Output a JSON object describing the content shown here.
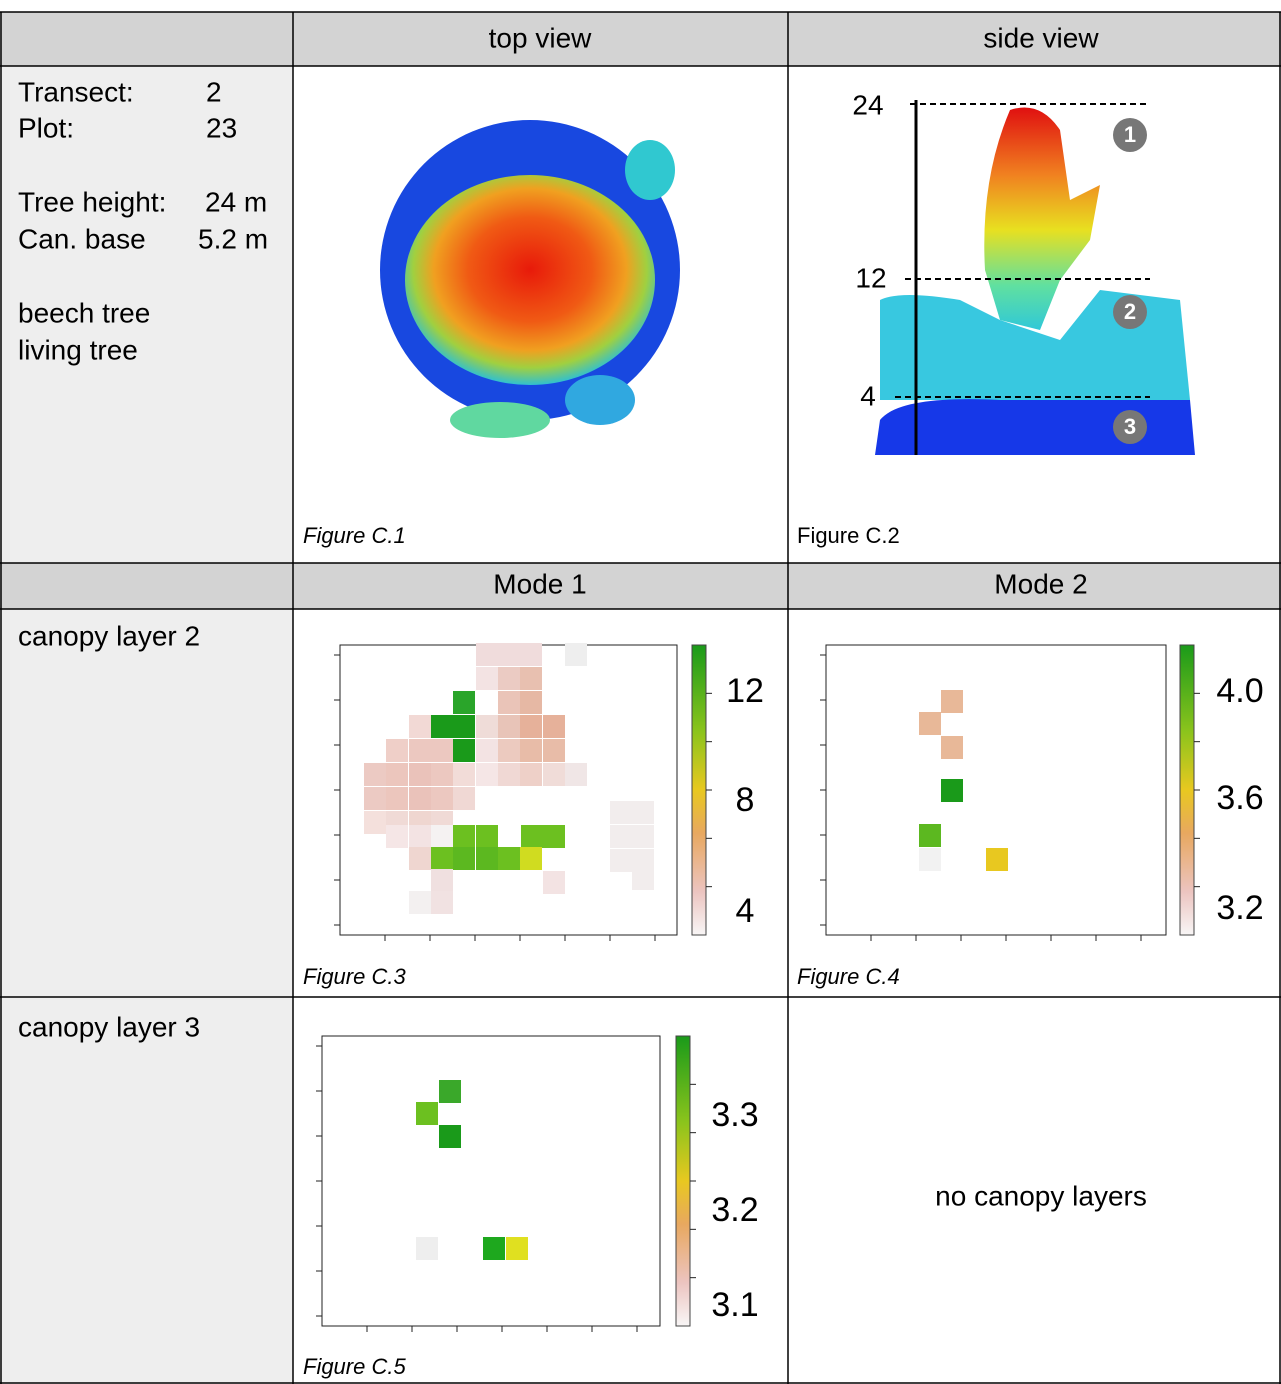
{
  "table": {
    "header_row_1": [
      "top view",
      "side view"
    ],
    "header_row_2": [
      "Mode 1",
      "Mode 2"
    ],
    "row_labels": [
      "canopy layer 2",
      "canopy layer 3"
    ],
    "empty_note": "no canopy layers"
  },
  "plot_info": {
    "transect_label": "Transect:",
    "transect": "2",
    "plot_label": "Plot:",
    "plot": "23",
    "height_label": "Tree height:",
    "height": "24 m",
    "base_label": "Can. base",
    "base": "5.2 m",
    "species": "beech tree",
    "status": "living tree"
  },
  "side_view": {
    "height_ticks": [
      "24",
      "12",
      "4"
    ],
    "layer_markers": [
      "1",
      "2",
      "3"
    ]
  },
  "captions": [
    "Figure C.1",
    "Figure C.2",
    "Figure C.3",
    "Figure C.4",
    "Figure C.5"
  ],
  "colorbars": {
    "c3": [
      "12",
      "8",
      "4"
    ],
    "c4": [
      "4.0",
      "3.6",
      "3.2"
    ],
    "c5": [
      "3.3",
      "3.2",
      "3.1"
    ]
  }
}
